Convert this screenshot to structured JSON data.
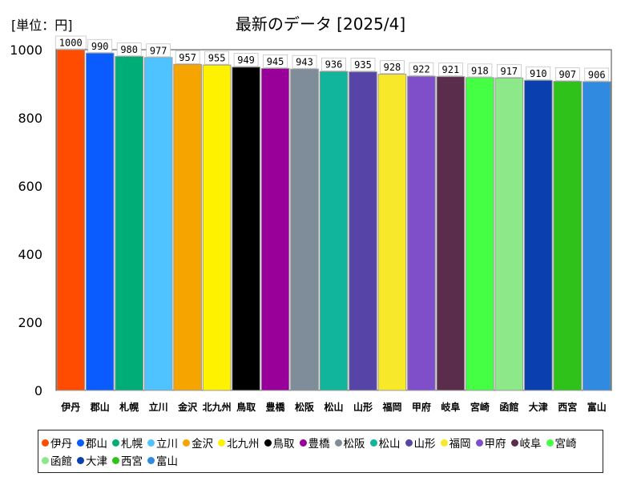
{
  "page": {
    "unit_label": "[単位：円]",
    "title": "最新のデータ [2025/4]"
  },
  "chart_data": {
    "type": "bar",
    "title": "最新のデータ [2025/4]",
    "unit": "[単位：円]",
    "categories": [
      "伊丹",
      "郡山",
      "札幌",
      "立川",
      "金沢",
      "北九州",
      "鳥取",
      "豊橋",
      "松阪",
      "松山",
      "山形",
      "福岡",
      "甲府",
      "岐阜",
      "宮崎",
      "函館",
      "大津",
      "西宮",
      "富山"
    ],
    "values": [
      1000,
      990,
      980,
      977,
      957,
      955,
      949,
      945,
      943,
      936,
      935,
      928,
      922,
      921,
      918,
      917,
      910,
      907,
      906
    ],
    "colors": [
      "#ff4c00",
      "#0a5cff",
      "#00ad76",
      "#4fc3ff",
      "#f5a400",
      "#fff200",
      "#000000",
      "#990099",
      "#7f8c99",
      "#11b59b",
      "#5645a6",
      "#f8e82a",
      "#7e4fc8",
      "#5a2d4c",
      "#44ff44",
      "#8de88a",
      "#0a3fb0",
      "#2fc21b",
      "#2f8ae0"
    ],
    "yticks": [
      0,
      200,
      400,
      600,
      800,
      1000
    ],
    "ylim": [
      0,
      1000
    ],
    "legend_position": "bottom",
    "grid": false
  }
}
